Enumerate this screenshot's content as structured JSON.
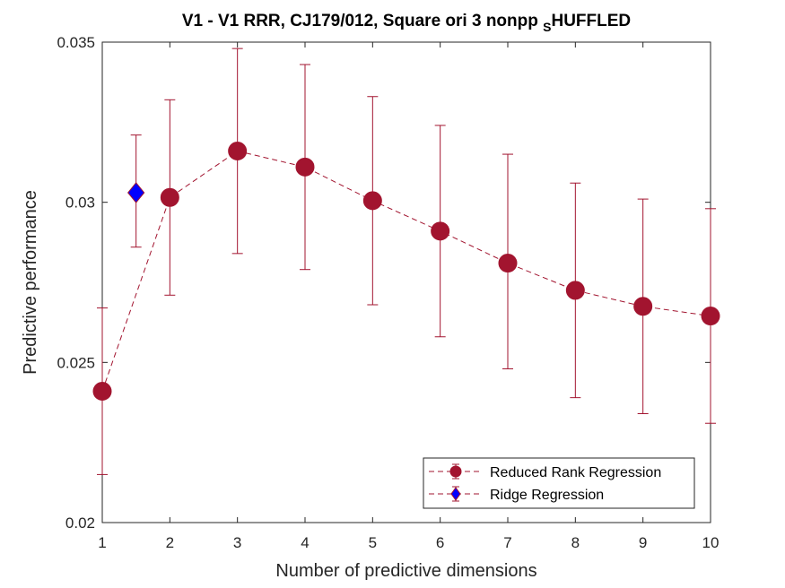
{
  "chart_data": {
    "type": "line",
    "title_main": "V1 - V1 RRR, CJ179/012, Square ori 3 nonpp ",
    "title_sub": "S",
    "title_tail": "HUFFLED",
    "xlabel": "Number of predictive dimensions",
    "ylabel": "Predictive performance",
    "xlim": [
      1,
      10
    ],
    "ylim": [
      0.02,
      0.035
    ],
    "xticks": [
      1,
      2,
      3,
      4,
      5,
      6,
      7,
      8,
      9,
      10
    ],
    "xtick_labels": [
      "1",
      "2",
      "3",
      "4",
      "5",
      "6",
      "7",
      "8",
      "9",
      "10"
    ],
    "yticks": [
      0.02,
      0.025,
      0.03,
      0.035
    ],
    "ytick_labels": [
      "0.02",
      "0.025",
      "0.03",
      "0.035"
    ],
    "grid": false,
    "legend_position": "bottom-right",
    "series": [
      {
        "name": "Reduced Rank Regression",
        "marker": "circle",
        "line_style": "dashed",
        "color": "#A2142F",
        "x": [
          1,
          2,
          3,
          4,
          5,
          6,
          7,
          8,
          9,
          10
        ],
        "y": [
          0.0241,
          0.03015,
          0.0316,
          0.0311,
          0.03005,
          0.0291,
          0.0281,
          0.02725,
          0.02675,
          0.02645
        ],
        "err_low": [
          0.0215,
          0.0271,
          0.0284,
          0.0279,
          0.0268,
          0.0258,
          0.0248,
          0.0239,
          0.0234,
          0.0231
        ],
        "err_high": [
          0.0267,
          0.0332,
          0.0348,
          0.0343,
          0.0333,
          0.0324,
          0.0315,
          0.0306,
          0.0301,
          0.0298
        ]
      },
      {
        "name": "Ridge Regression",
        "marker": "diamond",
        "line_style": "none",
        "color": "#0000FF",
        "edge_color": "#A2142F",
        "x": [
          1.5
        ],
        "y": [
          0.0303
        ],
        "err_low": [
          0.0286
        ],
        "err_high": [
          0.0321
        ]
      }
    ]
  }
}
